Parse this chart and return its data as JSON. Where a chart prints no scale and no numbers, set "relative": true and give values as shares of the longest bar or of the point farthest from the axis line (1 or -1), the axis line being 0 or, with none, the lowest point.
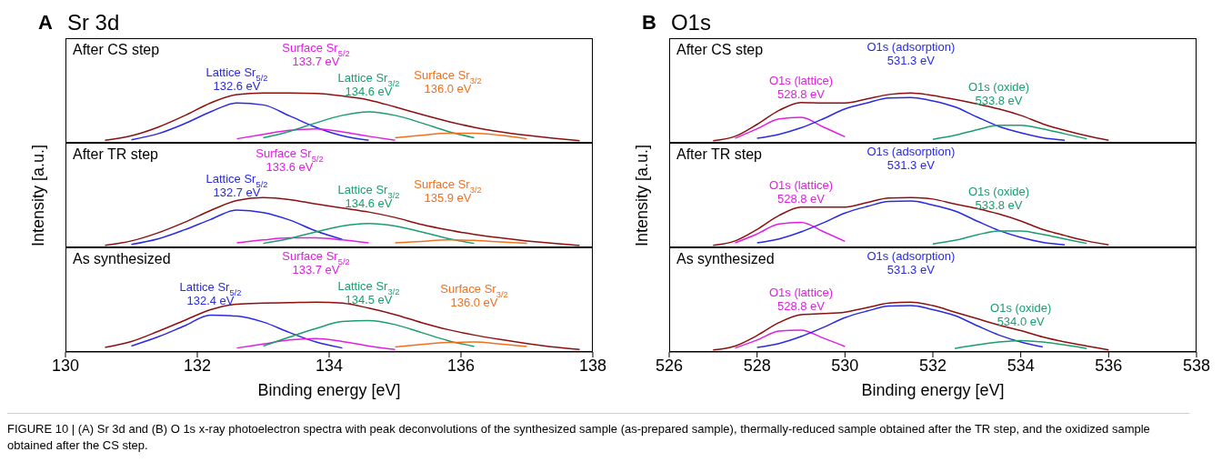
{
  "chart_data": [
    {
      "type": "line",
      "title": "Sr 3d",
      "subtitle": "After CS step",
      "annotations": [
        "A"
      ],
      "relative": true,
      "tick_labels": false,
      "xlim": [
        130,
        138
      ],
      "xticks": [
        130,
        132,
        134,
        136,
        138
      ],
      "x": [
        130.6,
        131.0,
        131.4,
        131.8,
        132.2,
        132.6,
        133.0,
        133.4,
        133.8,
        134.2,
        134.6,
        135.0,
        135.4,
        135.8,
        136.2,
        136.6,
        137.0,
        137.4,
        137.8
      ],
      "series": [
        {
          "color": "#8b1010",
          "values": [
            0.05,
            0.14,
            0.31,
            0.54,
            0.8,
            0.97,
            1.0,
            1.0,
            0.99,
            0.94,
            0.86,
            0.72,
            0.57,
            0.43,
            0.31,
            0.22,
            0.15,
            0.09,
            0.04
          ]
        },
        {
          "name": "Lattice Sr$_{5/2}$\n132.6 eV",
          "color": "#2a2ae0",
          "values": [
            null,
            0.06,
            0.18,
            0.38,
            0.62,
            0.8,
            0.76,
            0.54,
            0.31,
            0.14,
            0.05,
            null,
            null,
            null,
            null,
            null,
            null,
            null,
            null
          ]
        },
        {
          "name": "Surface Sr$_{5/2}$\n133.7 eV",
          "color": "#e020e0",
          "values": [
            null,
            null,
            null,
            null,
            null,
            0.08,
            0.17,
            0.25,
            0.28,
            0.22,
            0.13,
            0.05,
            null,
            null,
            null,
            null,
            null,
            null,
            null
          ]
        },
        {
          "name": "Lattice Sr$_{3/2}$\n134.6 eV",
          "color": "#1a9e6e",
          "values": [
            null,
            null,
            null,
            null,
            null,
            null,
            0.1,
            0.23,
            0.4,
            0.55,
            0.62,
            0.55,
            0.4,
            0.23,
            0.1,
            null,
            null,
            null,
            null
          ]
        },
        {
          "name": "Surface Sr$_{3/2}$\n136.0  eV",
          "color": "#f07020",
          "values": [
            null,
            null,
            null,
            null,
            null,
            null,
            null,
            null,
            null,
            null,
            null,
            0.1,
            0.15,
            0.19,
            0.19,
            0.15,
            0.08,
            null,
            null
          ]
        }
      ]
    },
    {
      "type": "line",
      "subtitle": "After TR step",
      "ylabel": "Intensity [a.u.]",
      "relative": true,
      "tick_labels": false,
      "xlim": [
        130,
        138
      ],
      "xticks": [
        130,
        132,
        134,
        136,
        138
      ],
      "x": [
        130.6,
        131.0,
        131.4,
        131.8,
        132.2,
        132.6,
        133.0,
        133.4,
        133.8,
        134.2,
        134.6,
        135.0,
        135.4,
        135.8,
        136.2,
        136.6,
        137.0,
        137.4,
        137.8
      ],
      "series": [
        {
          "color": "#8b1010",
          "values": [
            0.04,
            0.13,
            0.29,
            0.5,
            0.74,
            0.94,
            1.0,
            0.96,
            0.87,
            0.79,
            0.71,
            0.6,
            0.46,
            0.35,
            0.26,
            0.19,
            0.13,
            0.08,
            0.04
          ]
        },
        {
          "name": "Lattice Sr$_{5/2}$\n132.7 eV",
          "color": "#2a2ae0",
          "values": [
            null,
            0.06,
            0.17,
            0.35,
            0.56,
            0.75,
            0.7,
            0.55,
            0.33,
            0.16,
            null,
            null,
            null,
            null,
            null,
            null,
            null,
            null,
            null
          ]
        },
        {
          "name": "Surface Sr$_{5/2}$\n133.6 eV",
          "color": "#e020e0",
          "values": [
            null,
            null,
            null,
            null,
            null,
            0.09,
            0.15,
            0.19,
            0.19,
            0.15,
            0.09,
            null,
            null,
            null,
            null,
            null,
            null,
            null,
            null
          ]
        },
        {
          "name": "Lattice Sr$_{3/2}$\n134.6 eV",
          "color": "#1a9e6e",
          "values": [
            null,
            null,
            null,
            null,
            null,
            null,
            0.08,
            0.18,
            0.31,
            0.43,
            0.48,
            0.43,
            0.31,
            0.18,
            0.08,
            null,
            null,
            null,
            null
          ]
        },
        {
          "name": "Surface Sr$_{3/2}$\n135.9  eV",
          "color": "#f07020",
          "values": [
            null,
            null,
            null,
            null,
            null,
            null,
            null,
            null,
            null,
            null,
            null,
            0.09,
            0.12,
            0.15,
            0.14,
            0.11,
            0.08,
            null,
            null
          ]
        }
      ]
    },
    {
      "type": "line",
      "subtitle": "As synthesized",
      "xlabel": "Binding energy [eV]",
      "relative": true,
      "tick_labels": "x",
      "xlim": [
        130,
        138
      ],
      "xticks": [
        130,
        132,
        134,
        136,
        138
      ],
      "x": [
        130.6,
        131.0,
        131.4,
        131.8,
        132.2,
        132.6,
        133.0,
        133.4,
        133.8,
        134.2,
        134.6,
        135.0,
        135.4,
        135.8,
        136.2,
        136.6,
        137.0,
        137.4,
        137.8
      ],
      "series": [
        {
          "color": "#8b1010",
          "values": [
            0.09,
            0.21,
            0.41,
            0.63,
            0.85,
            0.96,
            0.98,
            0.99,
            1.0,
            0.98,
            0.88,
            0.75,
            0.59,
            0.45,
            0.34,
            0.25,
            0.17,
            0.1,
            0.05
          ]
        },
        {
          "name": "Lattice Sr$_{5/2}$\n132.4 eV",
          "color": "#2a2ae0",
          "values": [
            null,
            0.12,
            0.3,
            0.52,
            0.74,
            0.72,
            0.6,
            0.39,
            0.2,
            0.08,
            null,
            null,
            null,
            null,
            null,
            null,
            null,
            null,
            null
          ]
        },
        {
          "name": "Surface Sr$_{5/2}$\n133.7 eV",
          "color": "#e020e0",
          "values": [
            null,
            null,
            null,
            null,
            null,
            0.08,
            0.16,
            0.24,
            0.27,
            0.21,
            0.12,
            0.05,
            null,
            null,
            null,
            null,
            null,
            null,
            null
          ]
        },
        {
          "name": "Lattice Sr$_{3/2}$\n134.5 eV",
          "color": "#1a9e6e",
          "values": [
            null,
            null,
            null,
            null,
            null,
            null,
            0.12,
            0.3,
            0.47,
            0.61,
            0.63,
            0.55,
            0.39,
            0.23,
            0.11,
            null,
            null,
            null,
            null
          ]
        },
        {
          "name": "Surface Sr$_{3/2}$\n136.0  eV",
          "color": "#f07020",
          "values": [
            null,
            null,
            null,
            null,
            null,
            null,
            null,
            null,
            null,
            null,
            null,
            0.1,
            0.15,
            0.19,
            0.2,
            0.16,
            0.11,
            null,
            null
          ]
        }
      ]
    },
    {
      "type": "line",
      "title": "O1s",
      "subtitle": "After CS step",
      "annotations": [
        "B"
      ],
      "relative": true,
      "tick_labels": false,
      "xlim": [
        526,
        538
      ],
      "xticks": [
        526,
        528,
        530,
        532,
        534,
        536,
        538
      ],
      "x": [
        527,
        527.5,
        528,
        528.5,
        529,
        529.5,
        530,
        530.5,
        531,
        531.5,
        532,
        532.5,
        533,
        533.5,
        534,
        534.5,
        535,
        535.5,
        536
      ],
      "series": [
        {
          "color": "#8b1010",
          "values": [
            0.04,
            0.13,
            0.37,
            0.65,
            0.81,
            0.8,
            0.8,
            0.88,
            0.97,
            1.0,
            0.95,
            0.87,
            0.78,
            0.68,
            0.55,
            0.38,
            0.25,
            0.14,
            0.05
          ]
        },
        {
          "name": "O1s (lattice)\n528.8 eV",
          "color": "#e020e0",
          "values": [
            null,
            0.09,
            0.28,
            0.48,
            0.51,
            0.32,
            0.12,
            null,
            null,
            null,
            null,
            null,
            null,
            null,
            null,
            null,
            null,
            null,
            null
          ]
        },
        {
          "name": "O1s (adsorption)\n531.3 eV",
          "color": "#2a2ae0",
          "values": [
            null,
            null,
            0.09,
            0.17,
            0.3,
            0.48,
            0.68,
            0.8,
            0.9,
            0.91,
            0.84,
            0.72,
            0.52,
            0.33,
            0.2,
            0.1,
            0.05,
            null,
            null
          ]
        },
        {
          "name": "O1s (oxide)\n533.8 eV",
          "color": "#1a9e6e",
          "values": [
            null,
            null,
            null,
            null,
            null,
            null,
            null,
            null,
            null,
            null,
            0.07,
            0.15,
            0.26,
            0.35,
            0.35,
            0.28,
            0.18,
            0.08,
            null
          ]
        }
      ]
    },
    {
      "type": "line",
      "subtitle": "After TR step",
      "ylabel": "Intensity [a.u.]",
      "relative": true,
      "tick_labels": false,
      "xlim": [
        526,
        538
      ],
      "xticks": [
        526,
        528,
        530,
        532,
        534,
        536,
        538
      ],
      "x": [
        527,
        527.5,
        528,
        528.5,
        529,
        529.5,
        530,
        530.5,
        531,
        531.5,
        532,
        532.5,
        533,
        533.5,
        534,
        534.5,
        535,
        535.5,
        536
      ],
      "series": [
        {
          "color": "#8b1010",
          "values": [
            0.04,
            0.13,
            0.36,
            0.64,
            0.81,
            0.81,
            0.81,
            0.9,
            0.99,
            1.0,
            0.97,
            0.87,
            0.78,
            0.67,
            0.53,
            0.36,
            0.24,
            0.13,
            0.05
          ]
        },
        {
          "name": "O1s (lattice)\n528.8 eV",
          "color": "#e020e0",
          "values": [
            null,
            0.09,
            0.27,
            0.47,
            0.5,
            0.32,
            0.12,
            null,
            null,
            null,
            null,
            null,
            null,
            null,
            null,
            null,
            null,
            null,
            null
          ]
        },
        {
          "name": "O1s (adsorption)\n531.3 eV",
          "color": "#2a2ae0",
          "values": [
            null,
            null,
            0.09,
            0.17,
            0.31,
            0.49,
            0.69,
            0.82,
            0.92,
            0.93,
            0.85,
            0.73,
            0.53,
            0.34,
            0.2,
            0.1,
            0.05,
            null,
            null
          ]
        },
        {
          "name": "O1s (oxide)\n533.8 eV",
          "color": "#1a9e6e",
          "values": [
            null,
            null,
            null,
            null,
            null,
            null,
            null,
            null,
            null,
            null,
            0.07,
            0.14,
            0.25,
            0.33,
            0.33,
            0.26,
            0.17,
            0.08,
            null
          ]
        }
      ]
    },
    {
      "type": "line",
      "subtitle": "As synthesized",
      "xlabel": "Binding energy [eV]",
      "relative": true,
      "tick_labels": "x",
      "xlim": [
        526,
        538
      ],
      "xticks": [
        526,
        528,
        530,
        532,
        534,
        536,
        538
      ],
      "x": [
        527,
        527.5,
        528,
        528.5,
        529,
        529.5,
        530,
        530.5,
        531,
        531.5,
        532,
        532.5,
        533,
        533.5,
        534,
        534.5,
        535,
        535.5,
        536
      ],
      "series": [
        {
          "color": "#8b1010",
          "values": [
            0.04,
            0.12,
            0.33,
            0.59,
            0.75,
            0.77,
            0.8,
            0.89,
            0.98,
            1.0,
            0.93,
            0.8,
            0.67,
            0.54,
            0.43,
            0.3,
            0.2,
            0.12,
            0.04
          ]
        },
        {
          "name": "O1s (lattice)\n528.8 eV",
          "color": "#e020e0",
          "values": [
            null,
            0.08,
            0.24,
            0.42,
            0.44,
            0.28,
            0.11,
            null,
            null,
            null,
            null,
            null,
            null,
            null,
            null,
            null,
            null,
            null,
            null
          ]
        },
        {
          "name": "O1s (adsorption)\n531.3 eV",
          "color": "#2a2ae0",
          "values": [
            null,
            null,
            0.09,
            0.17,
            0.31,
            0.49,
            0.69,
            0.82,
            0.92,
            0.93,
            0.85,
            0.73,
            0.53,
            0.34,
            0.2,
            0.1,
            null,
            null,
            null
          ]
        },
        {
          "name": "O1s (oxide)\n534.0 eV",
          "color": "#1a9e6e",
          "values": [
            null,
            null,
            null,
            null,
            null,
            null,
            null,
            null,
            null,
            null,
            null,
            0.07,
            0.14,
            0.2,
            0.23,
            0.2,
            0.14,
            0.07,
            null
          ]
        }
      ]
    },
    {
      "type": "other",
      "annotations": [
        "FIGURE 10 | (A) Sr 3d and (B) O 1s x-ray photoelectron spectra with peak deconvolutions of the synthesized sample (as-prepared sample), thermally-reduced sample obtained after the TR step, and the oxidized sample obtained after the CS step."
      ]
    }
  ]
}
